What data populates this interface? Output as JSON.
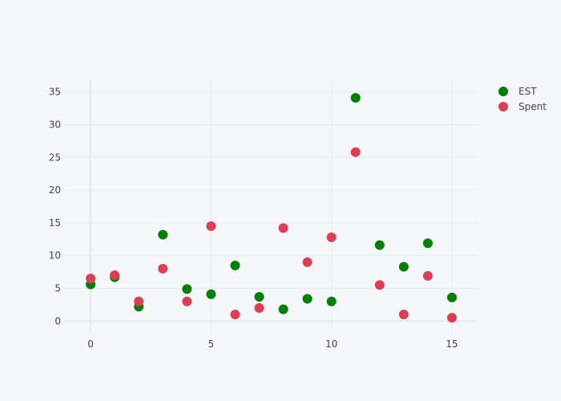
{
  "chart_data": {
    "type": "scatter",
    "title": "",
    "xlabel": "",
    "ylabel": "",
    "xlim": [
      -1.1,
      16.1
    ],
    "ylim": [
      -1.8,
      36.8
    ],
    "x_ticks": [
      0,
      5,
      10,
      15
    ],
    "y_ticks": [
      0,
      5,
      10,
      15,
      20,
      25,
      30,
      35
    ],
    "grid": true,
    "legend_position": "top-right",
    "series": [
      {
        "name": "EST",
        "color": "#008000",
        "x": [
          0,
          1,
          2,
          3,
          4,
          5,
          6,
          7,
          8,
          9,
          10,
          11,
          12,
          13,
          14,
          15
        ],
        "y": [
          5.6,
          6.7,
          2.2,
          13.2,
          4.9,
          4.1,
          8.5,
          3.7,
          1.8,
          3.4,
          3.0,
          34.1,
          11.6,
          8.3,
          11.9,
          3.6
        ]
      },
      {
        "name": "Spent",
        "color": "#dc3f53",
        "x": [
          0,
          1,
          2,
          3,
          4,
          5,
          6,
          7,
          8,
          9,
          10,
          11,
          12,
          13,
          14,
          15
        ],
        "y": [
          6.5,
          7.0,
          3.0,
          8.0,
          3.0,
          14.5,
          1.0,
          2.0,
          14.2,
          9.0,
          12.8,
          25.8,
          5.5,
          1.0,
          6.9,
          0.5
        ]
      }
    ]
  }
}
